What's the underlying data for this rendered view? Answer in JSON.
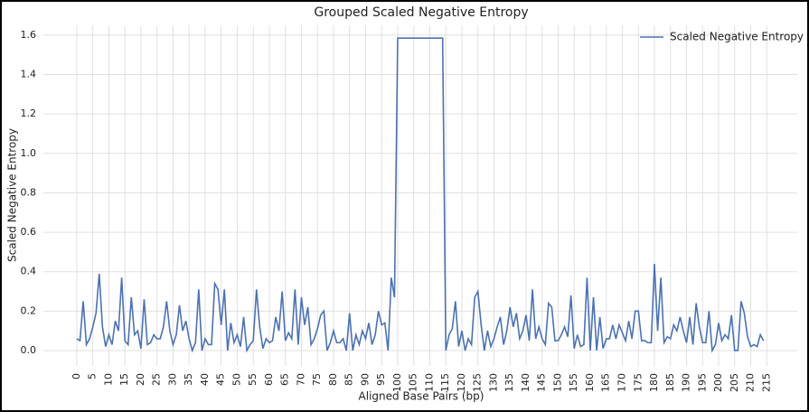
{
  "chart_data": {
    "type": "line",
    "title": "Grouped Scaled Negative Entropy",
    "xlabel": "Aligned Base Pairs (bp)",
    "ylabel": "Scaled Negative Entropy",
    "x": [
      0,
      1,
      2,
      3,
      4,
      5,
      6,
      7,
      8,
      9,
      10,
      11,
      12,
      13,
      14,
      15,
      16,
      17,
      18,
      19,
      20,
      21,
      22,
      23,
      24,
      25,
      26,
      27,
      28,
      29,
      30,
      31,
      32,
      33,
      34,
      35,
      36,
      37,
      38,
      39,
      40,
      41,
      42,
      43,
      44,
      45,
      46,
      47,
      48,
      49,
      50,
      51,
      52,
      53,
      54,
      55,
      56,
      57,
      58,
      59,
      60,
      61,
      62,
      63,
      64,
      65,
      66,
      67,
      68,
      69,
      70,
      71,
      72,
      73,
      74,
      75,
      76,
      77,
      78,
      79,
      80,
      81,
      82,
      83,
      84,
      85,
      86,
      87,
      88,
      89,
      90,
      91,
      92,
      93,
      94,
      95,
      96,
      97,
      98,
      99,
      100,
      101,
      102,
      103,
      104,
      105,
      106,
      107,
      108,
      109,
      110,
      111,
      112,
      113,
      114,
      115,
      116,
      117,
      118,
      119,
      120,
      121,
      122,
      123,
      124,
      125,
      126,
      127,
      128,
      129,
      130,
      131,
      132,
      133,
      134,
      135,
      136,
      137,
      138,
      139,
      140,
      141,
      142,
      143,
      144,
      145,
      146,
      147,
      148,
      149,
      150,
      151,
      152,
      153,
      154,
      155,
      156,
      157,
      158,
      159,
      160,
      161,
      162,
      163,
      164,
      165,
      166,
      167,
      168,
      169,
      170,
      171,
      172,
      173,
      174,
      175,
      176,
      177,
      178,
      179,
      180,
      181,
      182,
      183,
      184,
      185,
      186,
      187,
      188,
      189,
      190,
      191,
      192,
      193,
      194,
      195,
      196,
      197,
      198,
      199,
      200,
      201,
      202,
      203,
      204,
      205,
      206,
      207,
      208,
      209,
      210,
      211,
      212,
      213,
      214
    ],
    "series": [
      {
        "name": "Scaled Negative Entropy",
        "color": "#4c72b0",
        "values": [
          0.06,
          0.05,
          0.25,
          0.03,
          0.06,
          0.12,
          0.19,
          0.39,
          0.12,
          0.02,
          0.08,
          0.03,
          0.15,
          0.1,
          0.37,
          0.05,
          0.03,
          0.27,
          0.08,
          0.1,
          0.01,
          0.26,
          0.03,
          0.04,
          0.08,
          0.06,
          0.06,
          0.12,
          0.25,
          0.1,
          0.03,
          0.08,
          0.23,
          0.1,
          0.15,
          0.06,
          0.0,
          0.04,
          0.31,
          0.0,
          0.06,
          0.03,
          0.03,
          0.34,
          0.31,
          0.13,
          0.31,
          0.0,
          0.14,
          0.04,
          0.08,
          0.02,
          0.17,
          0.0,
          0.03,
          0.05,
          0.31,
          0.12,
          0.01,
          0.06,
          0.04,
          0.05,
          0.17,
          0.1,
          0.3,
          0.05,
          0.09,
          0.06,
          0.31,
          0.03,
          0.27,
          0.13,
          0.22,
          0.03,
          0.06,
          0.11,
          0.18,
          0.2,
          0.0,
          0.04,
          0.1,
          0.04,
          0.04,
          0.06,
          0.0,
          0.19,
          0.0,
          0.08,
          0.03,
          0.1,
          0.06,
          0.14,
          0.03,
          0.08,
          0.2,
          0.13,
          0.14,
          0.0,
          0.37,
          0.27,
          1.585,
          1.585,
          1.585,
          1.585,
          1.585,
          1.585,
          1.585,
          1.585,
          1.585,
          1.585,
          1.585,
          1.585,
          1.585,
          1.585,
          1.585,
          0.0,
          0.08,
          0.11,
          0.25,
          0.02,
          0.1,
          0.0,
          0.06,
          0.03,
          0.27,
          0.3,
          0.13,
          0.0,
          0.1,
          0.02,
          0.06,
          0.12,
          0.17,
          0.03,
          0.1,
          0.22,
          0.12,
          0.19,
          0.06,
          0.1,
          0.18,
          0.05,
          0.31,
          0.06,
          0.12,
          0.06,
          0.03,
          0.24,
          0.22,
          0.05,
          0.05,
          0.08,
          0.12,
          0.07,
          0.28,
          0.01,
          0.08,
          0.02,
          0.03,
          0.37,
          0.0,
          0.27,
          0.0,
          0.17,
          0.01,
          0.06,
          0.06,
          0.13,
          0.06,
          0.13,
          0.09,
          0.05,
          0.15,
          0.06,
          0.2,
          0.2,
          0.05,
          0.05,
          0.04,
          0.04,
          0.44,
          0.1,
          0.37,
          0.04,
          0.07,
          0.06,
          0.13,
          0.1,
          0.17,
          0.1,
          0.04,
          0.17,
          0.03,
          0.24,
          0.12,
          0.04,
          0.04,
          0.2,
          0.0,
          0.03,
          0.14,
          0.05,
          0.08,
          0.06,
          0.18,
          0.0,
          0.0,
          0.25,
          0.19,
          0.07,
          0.02,
          0.03,
          0.02,
          0.08,
          0.05
        ]
      }
    ],
    "xlim": [
      -10.4,
      224.5
    ],
    "xticks": [
      0,
      5,
      10,
      15,
      20,
      25,
      30,
      35,
      40,
      45,
      50,
      55,
      60,
      65,
      70,
      75,
      80,
      85,
      90,
      95,
      100,
      105,
      110,
      115,
      120,
      125,
      130,
      135,
      140,
      145,
      150,
      155,
      160,
      165,
      170,
      175,
      180,
      185,
      190,
      195,
      200,
      205,
      210,
      215
    ],
    "ylim": [
      -0.078,
      1.65
    ],
    "yticks": [
      {
        "value": 0,
        "label": "0.0"
      },
      0.2,
      0.4,
      0.6,
      0.8,
      {
        "value": 1,
        "label": "1.0"
      },
      1.2,
      1.4,
      1.6
    ],
    "grid": true,
    "legend": "upper right"
  }
}
